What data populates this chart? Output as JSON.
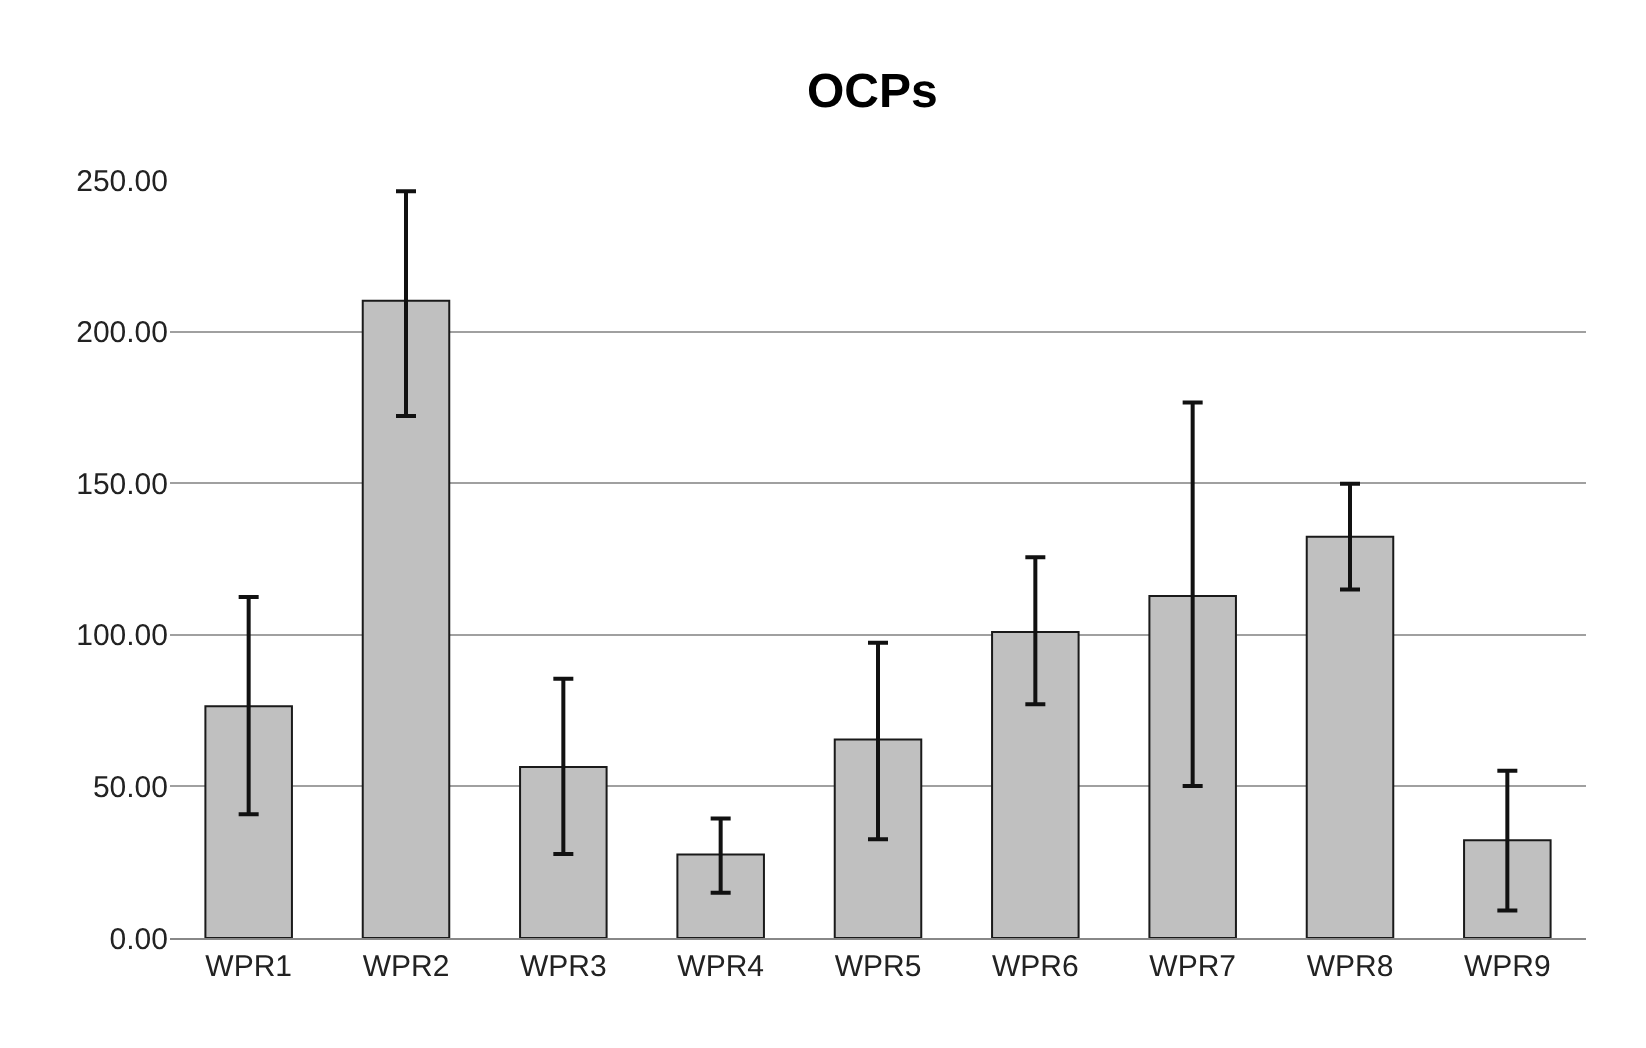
{
  "chart_data": {
    "type": "bar",
    "title": "OCPs",
    "categories": [
      "WPR1",
      "WPR2",
      "WPR3",
      "WPR4",
      "WPR5",
      "WPR6",
      "WPR7",
      "WPR8",
      "WPR9"
    ],
    "values": [
      76.4,
      210.2,
      56.4,
      27.5,
      65.5,
      100.9,
      112.8,
      132.3,
      32.2
    ],
    "errors": [
      [
        40.8,
        112.5
      ],
      [
        172.2,
        246.3
      ],
      [
        27.7,
        85.5
      ],
      [
        14.9,
        39.4
      ],
      [
        32.6,
        97.4
      ],
      [
        77.1,
        125.6
      ],
      [
        50.1,
        176.6
      ],
      [
        114.9,
        149.8
      ],
      [
        9.1,
        55.2
      ]
    ],
    "color": "#c0c0c0",
    "ylim": [
      0,
      250
    ],
    "yticks": [
      {
        "value": 0,
        "label": "0.00"
      },
      {
        "value": 50,
        "label": "50.00"
      },
      {
        "value": 100,
        "label": "100.00"
      },
      {
        "value": 150,
        "label": "150.00"
      },
      {
        "value": 200,
        "label": "200.00"
      },
      {
        "value": 250,
        "label": "250.00"
      }
    ],
    "grid": "y",
    "legend": false
  }
}
